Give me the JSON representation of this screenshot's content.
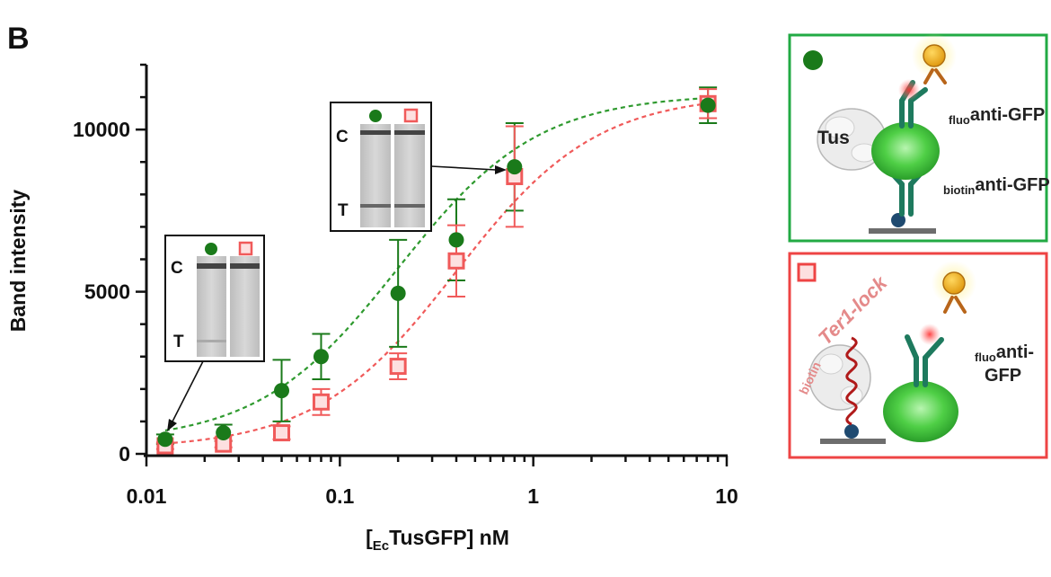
{
  "panel_label": "B",
  "chart_data": {
    "type": "scatter",
    "x_scale": "log",
    "xlim": [
      0.01,
      10
    ],
    "ylim": [
      0,
      12000
    ],
    "x_ticks": [
      0.01,
      0.1,
      1,
      10
    ],
    "x_tick_labels": [
      "0.01",
      "0.1",
      "1",
      "10"
    ],
    "y_ticks": [
      0,
      5000,
      10000
    ],
    "y_tick_labels": [
      "0",
      "5000",
      "10000"
    ],
    "ylabel": "Band intensity",
    "xlabel": {
      "bracket_open": "[",
      "subscript": "Ec",
      "main": "TusGFP] nM"
    },
    "series": [
      {
        "marker": "filled-circle",
        "color": "#1a7a1a",
        "fit_color": "#2f9a2f",
        "x": [
          0.0125,
          0.025,
          0.05,
          0.08,
          0.2,
          0.4,
          0.8,
          8.0
        ],
        "y": [
          450,
          650,
          1950,
          3000,
          4950,
          6600,
          8850,
          10750
        ],
        "err": [
          150,
          250,
          950,
          700,
          1650,
          1250,
          1350,
          550
        ],
        "fit": {
          "bottom": 350,
          "top": 11100,
          "ec50": 0.2,
          "hill": 1.2
        }
      },
      {
        "marker": "open-square",
        "color": "#f05a5a",
        "fit_color": "#f05a5a",
        "x": [
          0.0125,
          0.025,
          0.05,
          0.08,
          0.2,
          0.4,
          0.8,
          8.0
        ],
        "y": [
          250,
          300,
          650,
          1600,
          2700,
          5950,
          8550,
          10800
        ],
        "err": [
          100,
          100,
          200,
          400,
          400,
          1100,
          1550,
          450
        ],
        "fit": {
          "bottom": 150,
          "top": 11100,
          "ec50": 0.4,
          "hill": 1.2
        }
      }
    ]
  },
  "gel_insets": [
    {
      "labels": {
        "control": "C",
        "test": "T"
      },
      "lanes": [
        "filled-circle",
        "open-square"
      ]
    },
    {
      "labels": {
        "control": "C",
        "test": "T"
      },
      "lanes": [
        "filled-circle",
        "open-square"
      ]
    }
  ],
  "schematics": {
    "top": {
      "border_color": "#22aa44",
      "tus_label": "Tus",
      "fluo_sub": "fluo",
      "fluo_main": "anti-GFP",
      "biotin_sub": "biotin",
      "biotin_main": "anti-GFP"
    },
    "bottom": {
      "border_color": "#ee4444",
      "lock_label": "Ter1-lock",
      "biotin_sub": "biotin",
      "fluo_sub": "fluo",
      "fluo_main_line1": "anti-",
      "fluo_main_line2": "GFP"
    }
  }
}
